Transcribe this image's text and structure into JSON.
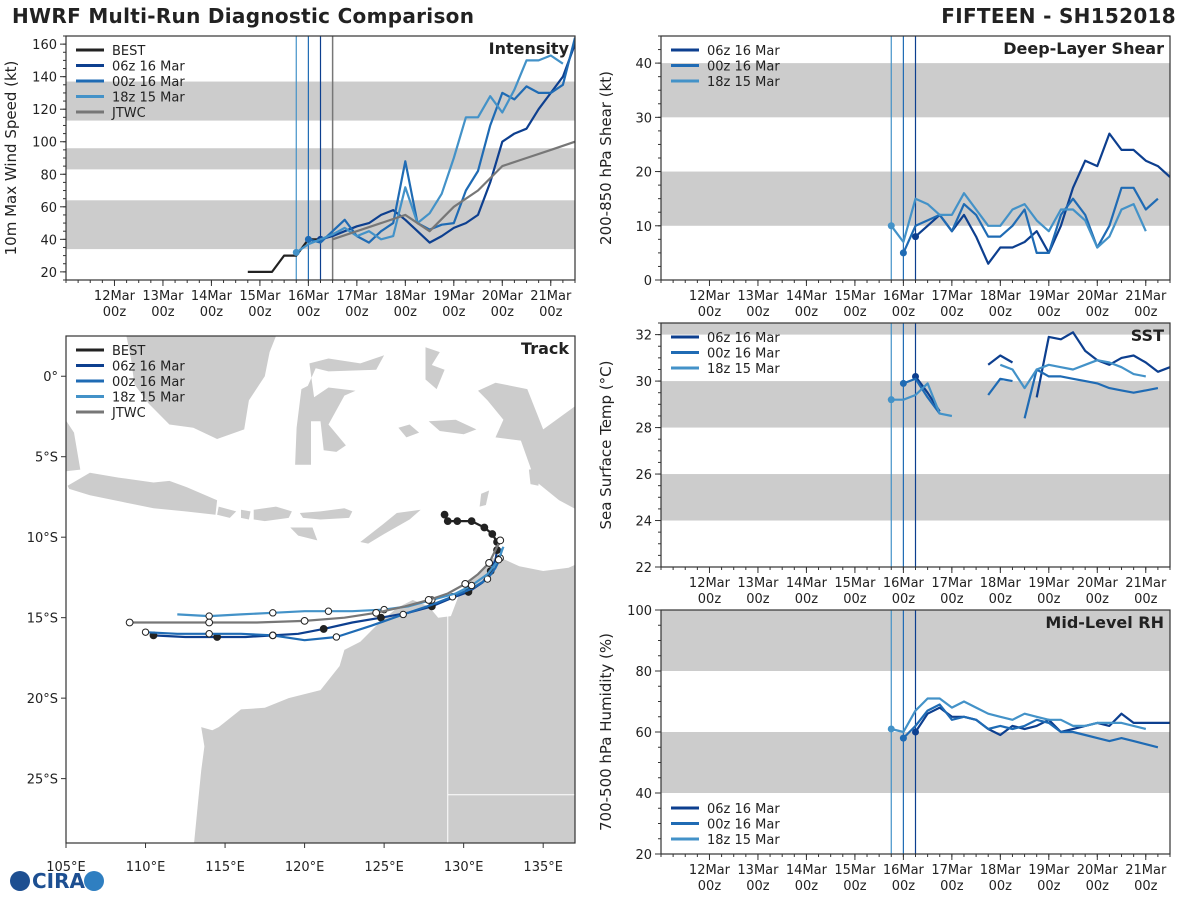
{
  "header": {
    "title": "HWRF Multi-Run Diagnostic Comparison",
    "storm": "FIFTEEN - SH152018"
  },
  "logo": {
    "text": "CIRA"
  },
  "colors": {
    "BEST": "#222222",
    "06z": "#0d3f8f",
    "00z": "#1f6bb4",
    "18z": "#4392c8",
    "JTWC": "#777777",
    "shade": "#cccccc",
    "land": "#cccccc"
  },
  "time_axis": {
    "labels": [
      [
        "12Mar",
        "00z"
      ],
      [
        "13Mar",
        "00z"
      ],
      [
        "14Mar",
        "00z"
      ],
      [
        "15Mar",
        "00z"
      ],
      [
        "16Mar",
        "00z"
      ],
      [
        "17Mar",
        "00z"
      ],
      [
        "18Mar",
        "00z"
      ],
      [
        "19Mar",
        "00z"
      ],
      [
        "20Mar",
        "00z"
      ],
      [
        "21Mar",
        "00z"
      ]
    ],
    "xlim": [
      -1,
      9.5
    ],
    "init_lines": [
      {
        "t": 3.75,
        "run": "18z"
      },
      {
        "t": 4.0,
        "run": "00z"
      },
      {
        "t": 4.25,
        "run": "06z"
      }
    ]
  },
  "chart_data": [
    {
      "id": "intensity",
      "type": "line",
      "title": "Intensity",
      "ylabel": "10m Max Wind Speed (kt)",
      "ylim": [
        15,
        165
      ],
      "yticks": [
        20,
        40,
        60,
        80,
        100,
        120,
        140,
        160
      ],
      "bands": [
        [
          34,
          64
        ],
        [
          83,
          96
        ],
        [
          113,
          137
        ]
      ],
      "jtwc_line": 4.5,
      "legend": [
        "BEST",
        "06z 16 Mar",
        "00z 16 Mar",
        "18z 15 Mar",
        "JTWC"
      ],
      "series": [
        {
          "name": "BEST",
          "x": [
            2.75,
            3.0,
            3.25,
            3.5,
            3.75,
            4.0,
            4.25
          ],
          "y": [
            20,
            20,
            20,
            30,
            30,
            40,
            40
          ]
        },
        {
          "name": "06z 16 Mar",
          "x": [
            4.25,
            4.5,
            4.75,
            5.0,
            5.25,
            5.5,
            5.75,
            6.0,
            6.25,
            6.5,
            6.75,
            7.0,
            7.25,
            7.5,
            7.75,
            8.0,
            8.25,
            8.5,
            8.75,
            9.0,
            9.25,
            9.5
          ],
          "y": [
            40,
            42,
            45,
            48,
            50,
            55,
            58,
            52,
            45,
            38,
            42,
            47,
            50,
            55,
            75,
            100,
            105,
            108,
            120,
            130,
            140,
            160
          ]
        },
        {
          "name": "00z 16 Mar",
          "x": [
            4.0,
            4.25,
            4.5,
            4.75,
            5.0,
            5.25,
            5.5,
            5.75,
            6.0,
            6.25,
            6.5,
            6.75,
            7.0,
            7.25,
            7.5,
            7.75,
            8.0,
            8.25,
            8.5,
            8.75,
            9.0,
            9.25,
            9.5
          ],
          "y": [
            40,
            38,
            45,
            52,
            42,
            38,
            45,
            50,
            88,
            50,
            46,
            49,
            50,
            70,
            82,
            110,
            130,
            126,
            134,
            130,
            130,
            135,
            164
          ]
        },
        {
          "name": "18z 15 Mar",
          "x": [
            3.75,
            4.0,
            4.25,
            4.5,
            4.75,
            5.0,
            5.25,
            5.5,
            5.75,
            6.0,
            6.25,
            6.5,
            6.75,
            7.0,
            7.25,
            7.5,
            7.75,
            8.0,
            8.25,
            8.5,
            8.75,
            9.0,
            9.25
          ],
          "y": [
            32,
            37,
            40,
            43,
            47,
            42,
            45,
            40,
            42,
            72,
            50,
            56,
            68,
            90,
            115,
            115,
            128,
            118,
            132,
            150,
            150,
            153,
            148
          ]
        },
        {
          "name": "JTWC",
          "x": [
            4.5,
            5.5,
            6.0,
            6.5,
            7.0,
            7.5,
            8.0,
            8.5,
            9.0,
            9.5
          ],
          "y": [
            40,
            50,
            55,
            45,
            60,
            70,
            85,
            90,
            95,
            100
          ]
        }
      ]
    },
    {
      "id": "shear",
      "type": "line",
      "title": "Deep-Layer Shear",
      "ylabel": "200-850 hPa Shear (kt)",
      "ylim": [
        0,
        45
      ],
      "yticks": [
        0,
        10,
        20,
        30,
        40
      ],
      "bands": [
        [
          10,
          20
        ],
        [
          30,
          40
        ]
      ],
      "legend": [
        "06z 16 Mar",
        "00z 16 Mar",
        "18z 15 Mar"
      ],
      "series": [
        {
          "name": "06z 16 Mar",
          "x": [
            4.25,
            4.5,
            4.75,
            5.0,
            5.25,
            5.5,
            5.75,
            6.0,
            6.25,
            6.5,
            6.75,
            7.0,
            7.25,
            7.5,
            7.75,
            8.0,
            8.25,
            8.5,
            8.75,
            9.0,
            9.25,
            9.5
          ],
          "y": [
            8,
            10,
            12,
            9,
            12,
            8,
            3,
            6,
            6,
            7,
            9,
            5,
            10,
            17,
            22,
            21,
            27,
            24,
            24,
            22,
            21,
            19
          ]
        },
        {
          "name": "00z 16 Mar",
          "x": [
            4.0,
            4.25,
            4.5,
            4.75,
            5.0,
            5.25,
            5.5,
            5.75,
            6.0,
            6.25,
            6.5,
            6.75,
            7.0,
            7.25,
            7.5,
            7.75,
            8.0,
            8.25,
            8.5,
            8.75,
            9.0,
            9.25
          ],
          "y": [
            5,
            10,
            11,
            12,
            9,
            14,
            12,
            8,
            8,
            10,
            13,
            5,
            5,
            12,
            15,
            12,
            6,
            10,
            17,
            17,
            13,
            15
          ]
        },
        {
          "name": "18z 15 Mar",
          "x": [
            3.75,
            4.0,
            4.25,
            4.5,
            4.75,
            5.0,
            5.25,
            5.5,
            5.75,
            6.0,
            6.25,
            6.5,
            6.75,
            7.0,
            7.25,
            7.5,
            7.75,
            8.0,
            8.25,
            8.5,
            8.75,
            9.0
          ],
          "y": [
            10,
            7,
            15,
            14,
            12,
            12,
            16,
            13,
            10,
            10,
            13,
            14,
            11,
            9,
            13,
            13,
            11,
            6,
            8,
            13,
            14,
            9
          ]
        }
      ]
    },
    {
      "id": "sst",
      "type": "line",
      "title": "SST",
      "ylabel": "Sea Surface Temp (°C)",
      "ylim": [
        22,
        32.5
      ],
      "yticks": [
        22,
        24,
        26,
        28,
        30,
        32
      ],
      "bands": [
        [
          24,
          26
        ],
        [
          28,
          30
        ],
        [
          32,
          34
        ]
      ],
      "legend": [
        "06z 16 Mar",
        "00z 16 Mar",
        "18z 15 Mar"
      ],
      "series": [
        {
          "name": "06z 16 Mar",
          "x": [
            4.25,
            4.5,
            4.75,
            null,
            5.75,
            6.0,
            6.25,
            null,
            6.75,
            7.0,
            7.25,
            7.5,
            7.75,
            8.0,
            8.25,
            8.5,
            8.75,
            9.0,
            9.25,
            9.5
          ],
          "y": [
            30.2,
            29.5,
            28.7,
            null,
            30.7,
            31.1,
            30.8,
            null,
            29.3,
            31.9,
            31.8,
            32.1,
            31.3,
            30.9,
            30.7,
            31.0,
            31.1,
            30.8,
            30.4,
            30.6
          ]
        },
        {
          "name": "00z 16 Mar",
          "x": [
            4.0,
            4.25,
            4.5,
            4.75,
            null,
            5.75,
            6.0,
            6.25,
            null,
            6.5,
            6.75,
            7.0,
            7.25,
            7.5,
            7.75,
            8.0,
            8.25,
            8.5,
            8.75,
            9.0,
            9.25
          ],
          "y": [
            29.9,
            30.1,
            29.3,
            28.6,
            null,
            29.4,
            30.1,
            30.0,
            null,
            28.4,
            30.5,
            30.2,
            30.2,
            30.1,
            30.0,
            29.9,
            29.7,
            29.6,
            29.5,
            29.6,
            29.7
          ]
        },
        {
          "name": "18z 15 Mar",
          "x": [
            3.75,
            4.0,
            4.25,
            4.5,
            4.75,
            5.0,
            null,
            6.0,
            6.25,
            6.5,
            6.75,
            7.0,
            7.25,
            7.5,
            7.75,
            8.0,
            8.25,
            8.5,
            8.75,
            9.0
          ],
          "y": [
            29.2,
            29.2,
            29.4,
            29.9,
            28.6,
            28.5,
            null,
            30.7,
            30.5,
            29.7,
            30.5,
            30.7,
            30.6,
            30.5,
            30.7,
            30.9,
            30.8,
            30.6,
            30.3,
            30.2
          ]
        }
      ]
    },
    {
      "id": "rh",
      "type": "line",
      "title": "Mid-Level RH",
      "ylabel": "700-500 hPa Humidity (%)",
      "ylim": [
        20,
        100
      ],
      "yticks": [
        20,
        40,
        60,
        80,
        100
      ],
      "bands": [
        [
          40,
          60
        ],
        [
          80,
          100
        ]
      ],
      "legend": [
        "06z 16 Mar",
        "00z 16 Mar",
        "18z 15 Mar"
      ],
      "series": [
        {
          "name": "06z 16 Mar",
          "x": [
            4.25,
            4.5,
            4.75,
            5.0,
            5.25,
            5.5,
            5.75,
            6.0,
            6.25,
            6.5,
            6.75,
            7.0,
            7.25,
            7.5,
            7.75,
            8.0,
            8.25,
            8.5,
            8.75,
            9.0,
            9.25,
            9.5
          ],
          "y": [
            60,
            66,
            68,
            65,
            65,
            64,
            61,
            59,
            62,
            61,
            62,
            64,
            60,
            61,
            62,
            63,
            62,
            66,
            63,
            63,
            63,
            63
          ]
        },
        {
          "name": "00z 16 Mar",
          "x": [
            4.0,
            4.25,
            4.5,
            4.75,
            5.0,
            5.25,
            5.5,
            5.75,
            6.0,
            6.25,
            6.5,
            6.75,
            7.0,
            7.25,
            7.5,
            7.75,
            8.0,
            8.25,
            8.5,
            8.75,
            9.0,
            9.25
          ],
          "y": [
            58,
            62,
            67,
            69,
            64,
            65,
            64,
            61,
            62,
            61,
            62,
            64,
            63,
            60,
            60,
            59,
            58,
            57,
            58,
            57,
            56,
            55
          ]
        },
        {
          "name": "18z 15 Mar",
          "x": [
            3.75,
            4.0,
            4.25,
            4.5,
            4.75,
            5.0,
            5.25,
            5.5,
            5.75,
            6.0,
            6.25,
            6.5,
            6.75,
            7.0,
            7.25,
            7.5,
            7.75,
            8.0,
            8.25,
            8.5,
            8.75,
            9.0
          ],
          "y": [
            61,
            60,
            67,
            71,
            71,
            68,
            70,
            68,
            66,
            65,
            64,
            66,
            65,
            64,
            64,
            62,
            62,
            63,
            63,
            63,
            62,
            61
          ]
        }
      ]
    },
    {
      "id": "track",
      "type": "scatter",
      "title": "Track",
      "xlim": [
        105,
        137
      ],
      "ylim": [
        -29,
        2.5
      ],
      "xticks": [
        105,
        110,
        115,
        120,
        125,
        130,
        135
      ],
      "xticklabels": [
        "105°E",
        "110°E",
        "115°E",
        "120°E",
        "125°E",
        "130°E",
        "135°E"
      ],
      "yticks": [
        0,
        -5,
        -10,
        -15,
        -20,
        -25
      ],
      "yticklabels": [
        "0°",
        "5°S",
        "10°S",
        "15°S",
        "20°S",
        "25°S"
      ],
      "legend": [
        "BEST",
        "06z 16 Mar",
        "00z 16 Mar",
        "18z 15 Mar",
        "JTWC"
      ],
      "series": [
        {
          "name": "BEST",
          "lon": [
            128.8,
            129.0,
            129.6,
            130.5,
            131.3,
            131.8,
            132.1
          ],
          "lat": [
            -8.6,
            -9.0,
            -9.0,
            -9.0,
            -9.4,
            -9.8,
            -10.3
          ]
        },
        {
          "name": "06z 16 Mar",
          "lon": [
            132.1,
            132.0,
            131.7,
            131.2,
            130.3,
            129.2,
            128.0,
            126.5,
            124.8,
            123.0,
            121.2,
            119.6,
            118.0,
            116.3,
            114.5,
            112.5,
            110.5
          ],
          "lat": [
            -10.8,
            -11.4,
            -12.1,
            -12.8,
            -13.4,
            -13.8,
            -14.3,
            -14.7,
            -15.0,
            -15.3,
            -15.7,
            -16.0,
            -16.1,
            -16.2,
            -16.2,
            -16.2,
            -16.1
          ]
        },
        {
          "name": "00z 16 Mar",
          "lon": [
            132.4,
            132.3,
            132.0,
            131.5,
            130.5,
            129.3,
            128.0,
            126.2,
            124.2,
            122.0,
            120.0,
            118.0,
            116.0,
            114.0,
            112.0,
            110.0
          ],
          "lat": [
            -10.7,
            -11.3,
            -11.9,
            -12.6,
            -13.2,
            -13.7,
            -14.2,
            -14.8,
            -15.5,
            -16.2,
            -16.4,
            -16.1,
            -16.0,
            -16.0,
            -16.0,
            -15.9
          ]
        },
        {
          "name": "18z 15 Mar",
          "lon": [
            132.5,
            132.2,
            131.5,
            130.5,
            129.5,
            128.0,
            126.5,
            125.0,
            123.0,
            121.5,
            120.0,
            118.0,
            116.0,
            114.0,
            112.0
          ],
          "lat": [
            -10.6,
            -11.4,
            -12.3,
            -13.0,
            -13.5,
            -13.9,
            -14.3,
            -14.5,
            -14.6,
            -14.6,
            -14.6,
            -14.7,
            -14.8,
            -14.9,
            -14.8
          ]
        },
        {
          "name": "JTWC",
          "lon": [
            132.3,
            132.0,
            131.6,
            130.9,
            130.1,
            129.0,
            127.8,
            126.3,
            124.5,
            122.5,
            120.0,
            117.0,
            114.0,
            111.0,
            109.0
          ],
          "lat": [
            -10.2,
            -10.8,
            -11.6,
            -12.3,
            -12.9,
            -13.5,
            -13.9,
            -14.3,
            -14.7,
            -15.0,
            -15.2,
            -15.3,
            -15.3,
            -15.3,
            -15.3
          ]
        }
      ]
    }
  ]
}
